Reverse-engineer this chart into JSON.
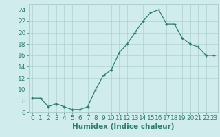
{
  "x": [
    0,
    1,
    2,
    3,
    4,
    5,
    6,
    7,
    8,
    9,
    10,
    11,
    12,
    13,
    14,
    15,
    16,
    17,
    18,
    19,
    20,
    21,
    22,
    23
  ],
  "y": [
    8.5,
    8.5,
    7.0,
    7.5,
    7.0,
    6.5,
    6.5,
    7.0,
    10.0,
    12.5,
    13.5,
    16.5,
    18.0,
    20.0,
    22.0,
    23.5,
    24.0,
    21.5,
    21.5,
    19.0,
    18.0,
    17.5,
    16.0,
    16.0
  ],
  "line_color": "#2e7d6e",
  "marker": "+",
  "marker_color": "#2e7d6e",
  "bg_color": "#d0ecec",
  "grid_color": "#b0d0d0",
  "xlabel": "Humidex (Indice chaleur)",
  "xlim": [
    -0.5,
    23.5
  ],
  "ylim": [
    6,
    25
  ],
  "yticks": [
    6,
    8,
    10,
    12,
    14,
    16,
    18,
    20,
    22,
    24
  ],
  "xticks": [
    0,
    1,
    2,
    3,
    4,
    5,
    6,
    7,
    8,
    9,
    10,
    11,
    12,
    13,
    14,
    15,
    16,
    17,
    18,
    19,
    20,
    21,
    22,
    23
  ],
  "xlabel_fontsize": 7.5,
  "tick_fontsize": 6.5
}
